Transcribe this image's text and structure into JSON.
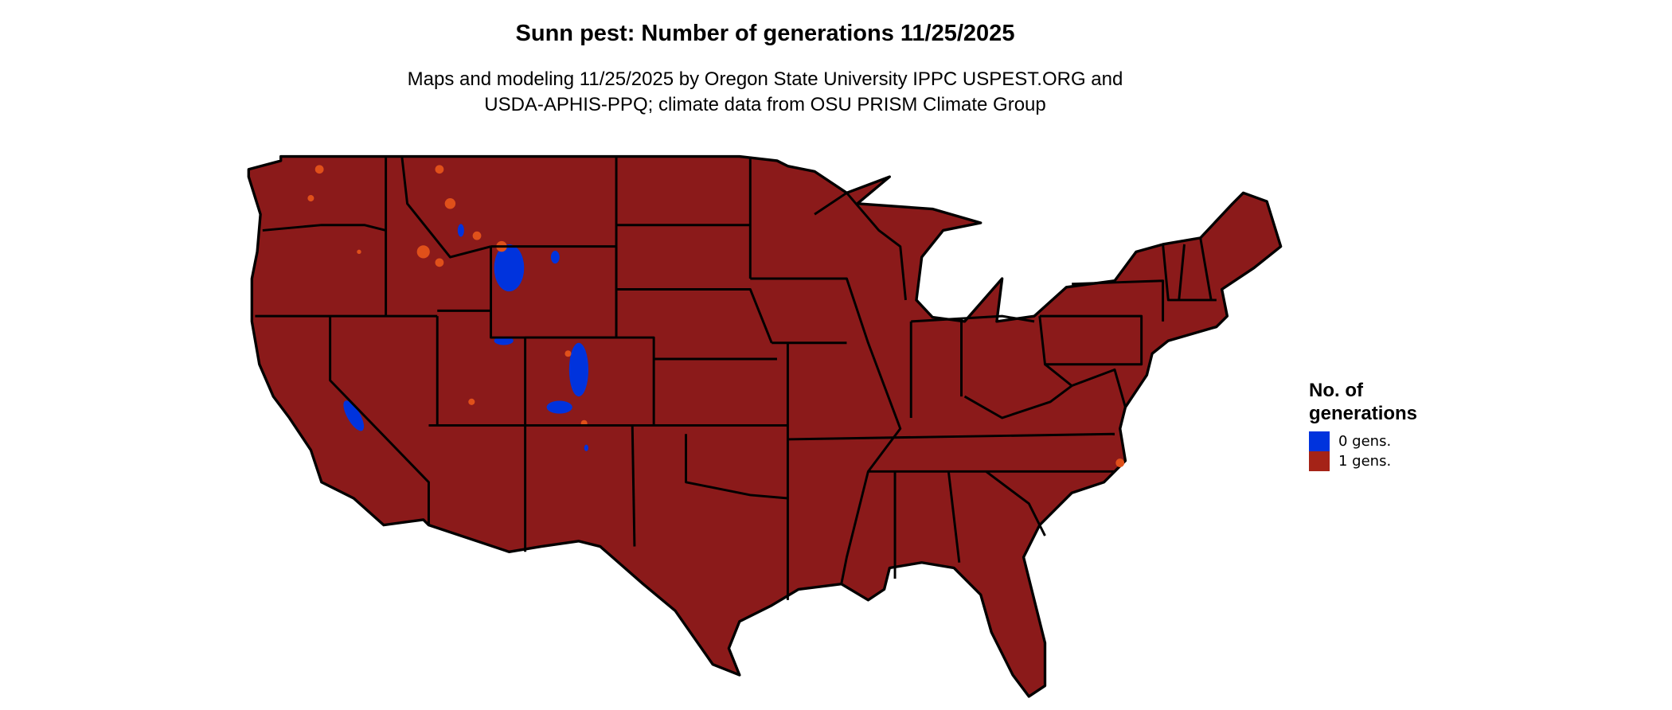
{
  "title": "Sunn pest: Number of generations 11/25/2025",
  "subtitle_line1": "Maps and modeling 11/25/2025 by Oregon State University IPPC USPEST.ORG and",
  "subtitle_line2": "USDA-APHIS-PPQ; climate data from OSU PRISM Climate Group",
  "legend": {
    "title_line1": "No. of",
    "title_line2": "generations",
    "items": [
      {
        "label": "0 gens.",
        "color": "#0033dd"
      },
      {
        "label": "1 gens.",
        "color": "#a52317"
      }
    ]
  },
  "map": {
    "region": "Contiguous United States",
    "fill_color": "#8b1a1a",
    "zero_gen_color": "#0033dd",
    "speckle_color": "#e0501a"
  }
}
